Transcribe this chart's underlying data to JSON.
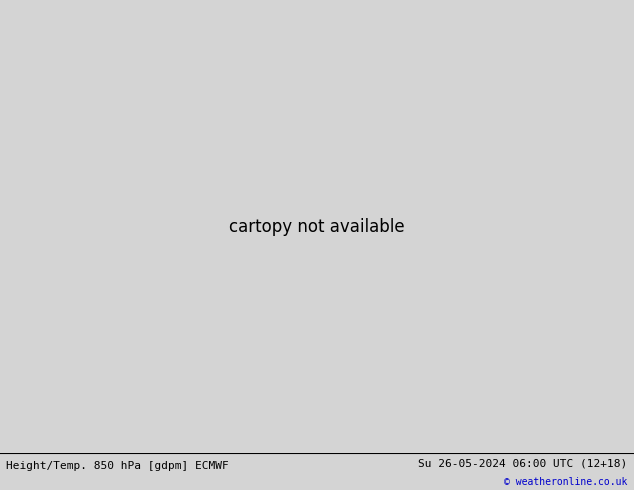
{
  "title_left": "Height/Temp. 850 hPa [gdpm] ECMWF",
  "title_right": "Su 26-05-2024 06:00 UTC (12+18)",
  "copyright": "© weatheronline.co.uk",
  "figsize": [
    6.34,
    4.9
  ],
  "dpi": 100,
  "land_color": "#d4d4d4",
  "ocean_color": "#d4d4d4",
  "green_fill": "#b8f090",
  "red_fill": "#e87070",
  "black_contour_color": "#000000",
  "orange_contour_color": "#ff8800",
  "red_contour_color": "#cc0000",
  "magenta_contour_color": "#cc00cc",
  "cyan_contour_color": "#00bbbb",
  "lime_contour_color": "#88cc00",
  "blue_dot_color": "#0044cc",
  "title_fontsize": 8,
  "copyright_fontsize": 7,
  "label_fontsize": 6,
  "extent": [
    -175,
    -50,
    12,
    80
  ],
  "central_longitude": -100,
  "central_latitude": 45
}
